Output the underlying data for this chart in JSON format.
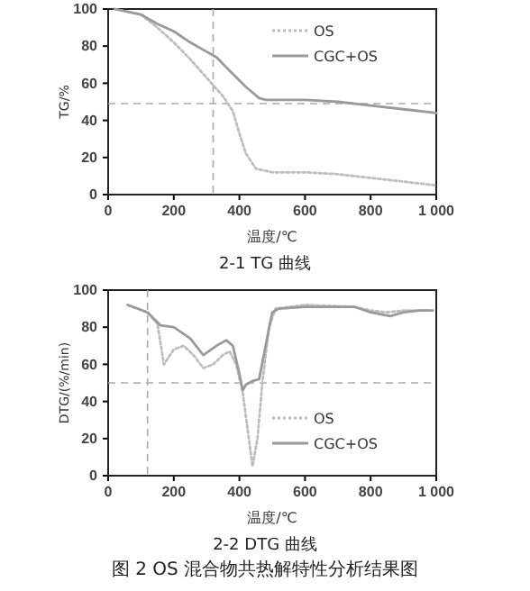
{
  "chart_data": [
    {
      "type": "line",
      "title": "2-1   TG 曲线",
      "xlabel": "温度/℃",
      "ylabel": "TG/%",
      "xlim": [
        0,
        1000
      ],
      "xticks": [
        0,
        200,
        400,
        600,
        800,
        {
          "value": 1000,
          "label": "1 000"
        }
      ],
      "ylim": [
        0,
        100
      ],
      "yticks": [
        0,
        20,
        40,
        60,
        80,
        100
      ],
      "legend": "top right",
      "grid": false,
      "ref_lines": [
        {
          "axis": "x",
          "value": 320,
          "color": "#aaaaaa",
          "line_style": "dashed"
        },
        {
          "axis": "y",
          "value": 49,
          "color": "#aaaaaa",
          "line_style": "dashed"
        }
      ],
      "series": [
        {
          "name": "OS",
          "color": "#bdbdbd",
          "line_style": "dotted",
          "x": [
            20,
            100,
            150,
            200,
            250,
            300,
            350,
            380,
            400,
            420,
            450,
            500,
            600,
            700,
            800,
            900,
            1000
          ],
          "values": [
            100,
            97,
            90,
            82,
            73,
            63,
            53,
            45,
            33,
            22,
            14,
            12,
            12,
            11,
            9,
            7,
            5
          ]
        },
        {
          "name": "CGC+OS",
          "color": "#9a9a9a",
          "line_style": "solid",
          "x": [
            20,
            100,
            150,
            200,
            250,
            300,
            330,
            380,
            420,
            460,
            480,
            600,
            700,
            800,
            900,
            1000
          ],
          "values": [
            100,
            97,
            92,
            88,
            82,
            77,
            74,
            65,
            58,
            52,
            51,
            51,
            50,
            48,
            46,
            44
          ]
        }
      ]
    },
    {
      "type": "line",
      "title": "2-2   DTG 曲线",
      "xlabel": "温度/℃",
      "ylabel": "DTG/(%/min)",
      "xlim": [
        0,
        1000
      ],
      "xticks": [
        0,
        200,
        400,
        600,
        800,
        {
          "value": 1000,
          "label": "1 000"
        }
      ],
      "ylim": [
        0,
        100
      ],
      "yticks": [
        0,
        20,
        40,
        60,
        80,
        100
      ],
      "legend": "bottom right",
      "grid": false,
      "annotations": [
        "图 2   OS 混合物共热解特性分析结果图"
      ],
      "ref_lines": [
        {
          "axis": "x",
          "value": 120,
          "color": "#aaaaaa",
          "line_style": "dashed"
        },
        {
          "axis": "y",
          "value": 50,
          "color": "#aaaaaa",
          "line_style": "dashed"
        }
      ],
      "series": [
        {
          "name": "OS",
          "color": "#bdbdbd",
          "line_style": "dotted",
          "x": [
            60,
            120,
            150,
            170,
            200,
            230,
            260,
            290,
            320,
            350,
            370,
            390,
            410,
            425,
            440,
            455,
            470,
            490,
            510,
            600,
            750,
            800,
            850,
            900,
            980
          ],
          "values": [
            92,
            88,
            82,
            60,
            68,
            70,
            65,
            58,
            60,
            65,
            67,
            60,
            45,
            25,
            5,
            20,
            50,
            80,
            90,
            92,
            91,
            89,
            88,
            89,
            89
          ]
        },
        {
          "name": "CGC+OS",
          "color": "#9a9a9a",
          "line_style": "solid",
          "x": [
            60,
            120,
            160,
            200,
            250,
            290,
            330,
            360,
            380,
            400,
            410,
            420,
            440,
            460,
            480,
            500,
            520,
            600,
            750,
            800,
            860,
            900,
            950,
            990
          ],
          "values": [
            92,
            88,
            81,
            80,
            74,
            65,
            70,
            73,
            70,
            55,
            46,
            49,
            51,
            52,
            70,
            88,
            90,
            91,
            91,
            88,
            86,
            88,
            89,
            89
          ]
        }
      ]
    }
  ]
}
